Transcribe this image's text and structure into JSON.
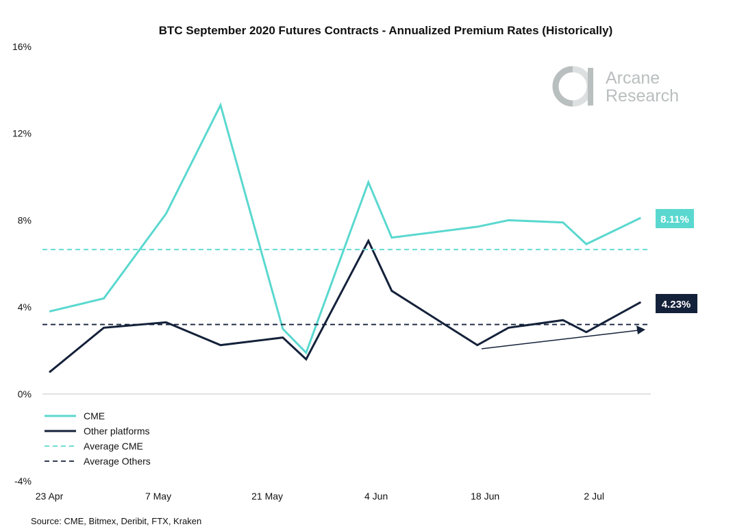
{
  "chart_data": {
    "type": "line",
    "title": "BTC September 2020 Futures Contracts - Annualized Premium Rates (Historically)",
    "xlabel": "",
    "ylabel": "",
    "ylim": [
      -4,
      16
    ],
    "y_ticks": [
      "16%",
      "12%",
      "8%",
      "4%",
      "0%",
      "-4%"
    ],
    "y_tick_values": [
      16,
      12,
      8,
      4,
      0,
      -4
    ],
    "x_ticks": [
      "23 Apr",
      "7 May",
      "21 May",
      "4 Jun",
      "18 Jun",
      "2 Jul"
    ],
    "x_tick_dates": [
      "2020-04-23",
      "2020-05-07",
      "2020-05-21",
      "2020-06-04",
      "2020-06-18",
      "2020-07-02"
    ],
    "x": [
      "2020-04-23",
      "2020-04-30",
      "2020-05-08",
      "2020-05-15",
      "2020-05-23",
      "2020-05-26",
      "2020-06-03",
      "2020-06-06",
      "2020-06-17",
      "2020-06-21",
      "2020-06-28",
      "2020-07-01",
      "2020-07-08"
    ],
    "series": [
      {
        "name": "CME",
        "color": "#5ad8cf",
        "style": "solid",
        "values": [
          3.8,
          4.4,
          8.3,
          13.3,
          3.0,
          1.9,
          9.75,
          7.2,
          7.7,
          8.0,
          7.9,
          6.9,
          8.11
        ]
      },
      {
        "name": "Other platforms",
        "color": "#14213a",
        "style": "solid",
        "values": [
          1.0,
          3.05,
          3.3,
          2.25,
          2.6,
          1.6,
          7.05,
          4.75,
          2.25,
          3.05,
          3.4,
          2.85,
          4.23
        ]
      },
      {
        "name": "Average CME",
        "color": "#5ad8cf",
        "style": "dashed",
        "value": 6.65
      },
      {
        "name": "Average Others",
        "color": "#14213a",
        "style": "dashed",
        "value": 3.2
      }
    ],
    "end_labels": [
      "8.11%",
      "4.23%"
    ],
    "annotation": "trend-arrow",
    "legend_position": "bottom-left",
    "grid": false
  },
  "source": "Source: CME, Bitmex, Deribit, FTX, Kraken",
  "logo": {
    "line1": "Arcane",
    "line2": "Research"
  }
}
